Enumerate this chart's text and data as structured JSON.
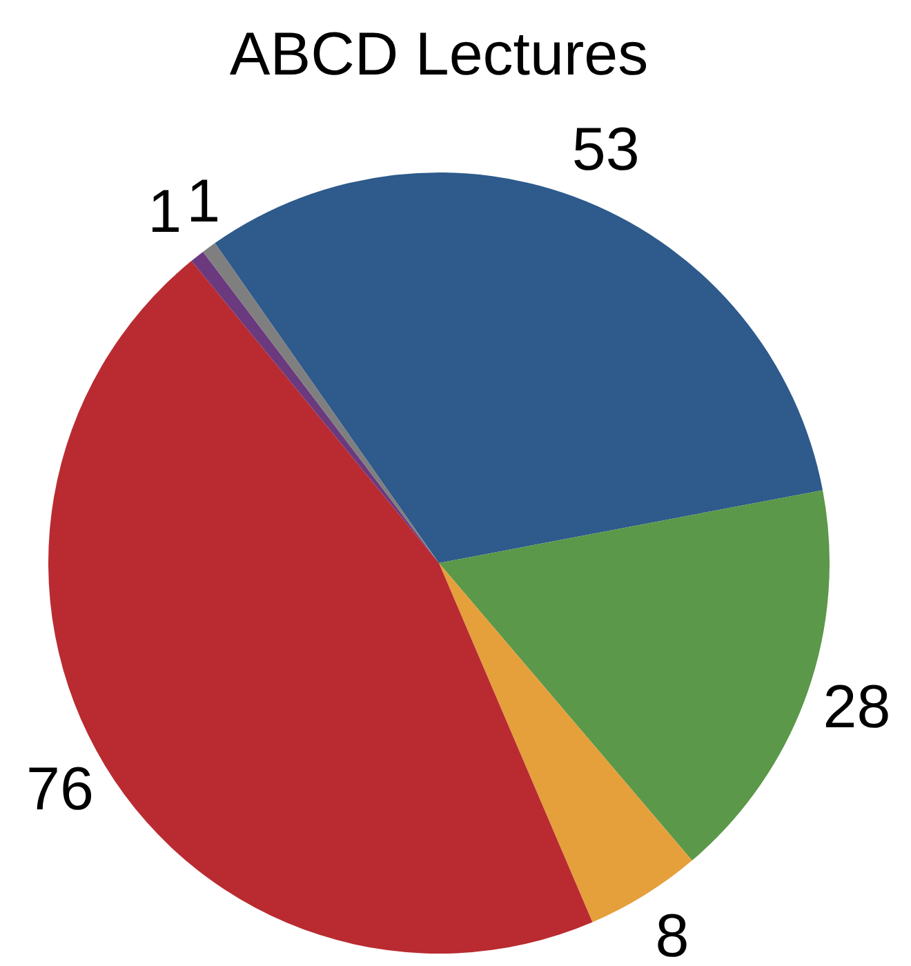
{
  "chart_data": {
    "type": "pie",
    "title": "ABCD Lectures",
    "categories": [
      null,
      null,
      null,
      null,
      null,
      null
    ],
    "values": [
      53,
      28,
      8,
      76,
      1,
      1
    ],
    "colors": [
      "#2e5a8c",
      "#5b9849",
      "#e5a03c",
      "#b92b31",
      "#6b3a7e",
      "#7f7f7f"
    ],
    "data_labels": true,
    "legend": false
  }
}
